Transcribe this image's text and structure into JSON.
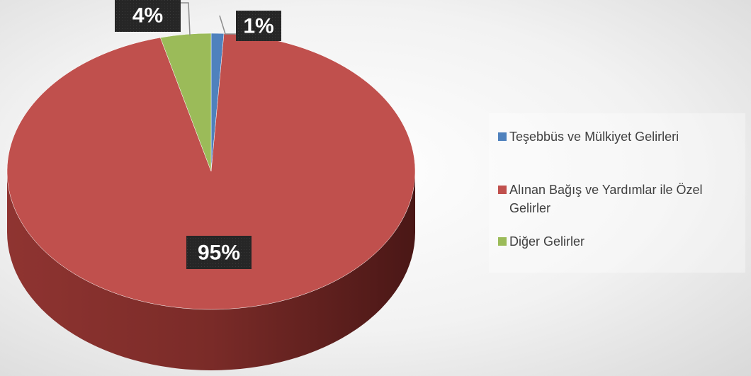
{
  "chart_data": {
    "type": "pie",
    "categories": [
      "Teşebbüs ve Mülkiyet Gelirleri",
      "Alınan Bağış ve Yardımlar ile Özel Gelirler",
      "Diğer Gelirler"
    ],
    "values": [
      1,
      95,
      4
    ],
    "value_labels": [
      "1%",
      "95%",
      "4%"
    ],
    "colors": [
      "#4f81bd",
      "#c0504d",
      "#9bbb59"
    ],
    "legend": "right"
  }
}
